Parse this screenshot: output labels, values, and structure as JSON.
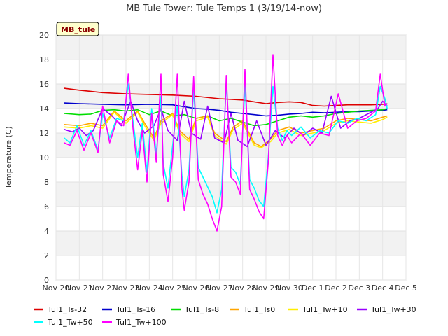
{
  "chart_data": {
    "type": "line",
    "title": "MB Tule Tower: Tule Temps 1 (3/19/14-now)",
    "xlabel": "",
    "ylabel": "Temperature (C)",
    "badge": "MB_tule",
    "ylim": [
      0,
      20
    ],
    "yticks": [
      0,
      2,
      4,
      6,
      8,
      10,
      12,
      14,
      16,
      18,
      20
    ],
    "xlim": [
      0,
      15
    ],
    "xtick_labels": [
      "Nov 20",
      "Nov 21",
      "Nov 22",
      "Nov 23",
      "Nov 24",
      "Nov 25",
      "Nov 26",
      "Nov 27",
      "Nov 28",
      "Nov 29",
      "Nov 30",
      "Dec 1",
      "Dec 2",
      "Dec 3",
      "Dec 4",
      "Dec 5"
    ],
    "grid": true,
    "legend_position": "bottom",
    "series": [
      {
        "name": "Tul1_Ts-32",
        "color": "#dd0000",
        "x": [
          0.35,
          1,
          2,
          3,
          4,
          5,
          6,
          7,
          8,
          8.5,
          9,
          9.5,
          10,
          10.5,
          11,
          11.5,
          12,
          12.5,
          13,
          13.5,
          14,
          14.2
        ],
        "y": [
          15.65,
          15.5,
          15.3,
          15.2,
          15.15,
          15.1,
          15.0,
          14.8,
          14.7,
          14.55,
          14.4,
          14.5,
          14.55,
          14.5,
          14.25,
          14.2,
          14.25,
          14.3,
          14.3,
          14.3,
          14.35,
          14.4
        ]
      },
      {
        "name": "Tul1_Ts-16",
        "color": "#0000cc",
        "x": [
          0.35,
          1,
          2,
          3,
          4,
          5,
          5.5,
          6,
          6.5,
          7,
          7.5,
          8,
          8.5,
          9,
          9.5,
          10,
          10.5,
          11,
          11.5,
          12,
          12.5,
          13,
          13.5,
          14,
          14.2
        ],
        "y": [
          14.45,
          14.4,
          14.35,
          14.3,
          14.35,
          14.3,
          14.15,
          14.0,
          13.95,
          13.85,
          13.7,
          13.6,
          13.5,
          13.4,
          13.45,
          13.55,
          13.6,
          13.7,
          13.65,
          13.7,
          13.75,
          13.75,
          13.8,
          13.85,
          13.9
        ]
      },
      {
        "name": "Tul1_Ts-8",
        "color": "#00dd00",
        "x": [
          0.35,
          1,
          1.5,
          2,
          2.5,
          3,
          3.5,
          4,
          4.5,
          5,
          5.5,
          6,
          6.5,
          7,
          7.5,
          8,
          8.5,
          9,
          9.5,
          10,
          10.5,
          11,
          11.5,
          12,
          12.5,
          13,
          13.5,
          14,
          14.2
        ],
        "y": [
          13.6,
          13.5,
          13.55,
          13.85,
          13.9,
          13.8,
          13.9,
          13.5,
          13.8,
          13.4,
          13.5,
          13.2,
          13.4,
          13.0,
          13.2,
          12.9,
          12.6,
          12.7,
          13.0,
          13.3,
          13.4,
          13.3,
          13.4,
          13.6,
          13.7,
          13.8,
          13.85,
          13.9,
          14.0
        ]
      },
      {
        "name": "Tul1_Ts0",
        "color": "#ffa500",
        "x": [
          0.35,
          1,
          1.5,
          2,
          2.5,
          3,
          3.5,
          3.8,
          4.2,
          4.5,
          5,
          5.3,
          5.7,
          6,
          6.5,
          6.8,
          7.3,
          7.6,
          8,
          8.5,
          8.8,
          9.2,
          9.5,
          10,
          10.5,
          11,
          11.5,
          12,
          12.5,
          13,
          13.5,
          14,
          14.2
        ],
        "y": [
          12.7,
          12.6,
          12.8,
          12.6,
          13.8,
          13.0,
          13.8,
          12.8,
          11.6,
          13.0,
          13.6,
          12.2,
          11.5,
          13.2,
          13.4,
          12.0,
          11.3,
          12.5,
          13.0,
          11.2,
          10.9,
          11.5,
          12.2,
          12.5,
          12.0,
          12.2,
          12.4,
          13.0,
          13.2,
          13.1,
          13.0,
          13.3,
          13.4
        ]
      },
      {
        "name": "Tul1_Tw+10",
        "color": "#ffee00",
        "x": [
          0.35,
          1,
          1.5,
          2,
          2.5,
          3,
          3.5,
          3.8,
          4.2,
          4.5,
          5,
          5.3,
          5.7,
          6,
          6.5,
          6.8,
          7.3,
          7.6,
          8,
          8.5,
          8.8,
          9.2,
          9.5,
          10,
          10.5,
          11,
          11.5,
          12,
          12.5,
          13,
          13.5,
          14,
          14.2
        ],
        "y": [
          12.5,
          12.4,
          12.6,
          12.4,
          13.7,
          12.8,
          13.7,
          12.6,
          11.4,
          12.8,
          13.5,
          12.0,
          11.3,
          13.0,
          13.3,
          11.8,
          11.1,
          12.3,
          12.8,
          11.0,
          10.8,
          11.3,
          12.0,
          12.3,
          11.8,
          12.0,
          12.2,
          12.8,
          13.0,
          12.9,
          12.8,
          13.1,
          13.3
        ]
      },
      {
        "name": "Tul1_Tw+30",
        "color": "#9900ff",
        "x": [
          0.35,
          0.7,
          1,
          1.3,
          1.6,
          2,
          2.4,
          2.8,
          3.2,
          3.5,
          3.8,
          4.2,
          4.5,
          4.8,
          5.2,
          5.5,
          5.8,
          6.2,
          6.5,
          6.8,
          7.2,
          7.5,
          7.8,
          8.2,
          8.6,
          9.0,
          9.4,
          9.8,
          10.2,
          10.6,
          11.0,
          11.4,
          11.8,
          12.2,
          12.6,
          13.0,
          13.4,
          13.8,
          14.0,
          14.2
        ],
        "y": [
          12.3,
          12.1,
          12.4,
          11.8,
          12.2,
          14.0,
          13.4,
          12.6,
          14.6,
          13.0,
          12.0,
          12.6,
          14.0,
          12.2,
          11.4,
          14.6,
          12.0,
          11.5,
          14.2,
          11.6,
          11.2,
          13.6,
          11.4,
          10.9,
          13.0,
          11.0,
          12.2,
          11.6,
          12.4,
          11.8,
          12.4,
          12.0,
          15.0,
          12.4,
          13.0,
          13.2,
          13.6,
          14.0,
          14.6,
          14.2
        ]
      },
      {
        "name": "Tul1_Tw+50",
        "color": "#00ffff",
        "x": [
          0.35,
          0.6,
          0.9,
          1.2,
          1.5,
          1.8,
          2.0,
          2.3,
          2.6,
          2.9,
          3.1,
          3.3,
          3.5,
          3.7,
          3.9,
          4.1,
          4.3,
          4.5,
          4.6,
          4.8,
          5.0,
          5.2,
          5.4,
          5.5,
          5.7,
          5.9,
          6.1,
          6.3,
          6.5,
          6.7,
          6.9,
          7.1,
          7.3,
          7.5,
          7.7,
          7.9,
          8.1,
          8.3,
          8.5,
          8.7,
          8.9,
          9.1,
          9.3,
          9.5,
          9.7,
          9.9,
          10.1,
          10.5,
          10.9,
          11.3,
          11.7,
          12.1,
          12.5,
          12.9,
          13.3,
          13.7,
          13.9,
          14.1,
          14.2
        ],
        "y": [
          11.6,
          11.2,
          12.6,
          11.0,
          12.2,
          10.6,
          13.6,
          11.6,
          13.2,
          13.0,
          16.0,
          13.0,
          10.0,
          12.8,
          8.8,
          14.0,
          10.2,
          15.0,
          9.5,
          7.5,
          11.0,
          14.2,
          8.5,
          6.8,
          9.0,
          15.6,
          9.2,
          8.4,
          7.6,
          6.8,
          5.5,
          7.4,
          16.2,
          9.2,
          8.8,
          7.8,
          16.0,
          8.2,
          7.5,
          6.5,
          6.0,
          10.0,
          15.8,
          12.4,
          11.4,
          12.2,
          11.8,
          12.5,
          11.6,
          12.2,
          12.0,
          13.0,
          12.8,
          13.2,
          13.0,
          13.5,
          15.8,
          14.8,
          14.0
        ]
      },
      {
        "name": "Tul1_Tw+100",
        "color": "#ff00ff",
        "x": [
          0.35,
          0.6,
          0.9,
          1.2,
          1.5,
          1.8,
          2.0,
          2.3,
          2.6,
          2.9,
          3.1,
          3.3,
          3.5,
          3.7,
          3.9,
          4.1,
          4.3,
          4.5,
          4.6,
          4.8,
          5.0,
          5.2,
          5.4,
          5.5,
          5.7,
          5.9,
          6.1,
          6.3,
          6.5,
          6.7,
          6.9,
          7.1,
          7.3,
          7.5,
          7.7,
          7.9,
          8.1,
          8.3,
          8.5,
          8.7,
          8.9,
          9.1,
          9.3,
          9.5,
          9.7,
          9.9,
          10.1,
          10.5,
          10.9,
          11.3,
          11.7,
          12.1,
          12.5,
          12.9,
          13.3,
          13.7,
          13.9,
          14.1,
          14.2
        ],
        "y": [
          11.2,
          11.0,
          12.2,
          10.6,
          12.0,
          10.4,
          14.2,
          11.2,
          13.0,
          12.6,
          16.8,
          12.4,
          9.0,
          12.2,
          8.0,
          13.6,
          9.6,
          16.8,
          8.6,
          6.4,
          10.0,
          16.8,
          7.4,
          5.7,
          8.0,
          16.6,
          8.2,
          7.0,
          6.2,
          5.0,
          4.0,
          6.0,
          16.7,
          8.4,
          8.0,
          7.0,
          17.2,
          7.4,
          6.6,
          5.6,
          5.0,
          9.6,
          18.4,
          11.8,
          11.0,
          11.8,
          11.2,
          12.0,
          11.0,
          12.0,
          11.8,
          15.2,
          12.4,
          13.0,
          13.2,
          13.8,
          16.8,
          14.2,
          14.4
        ]
      }
    ]
  }
}
